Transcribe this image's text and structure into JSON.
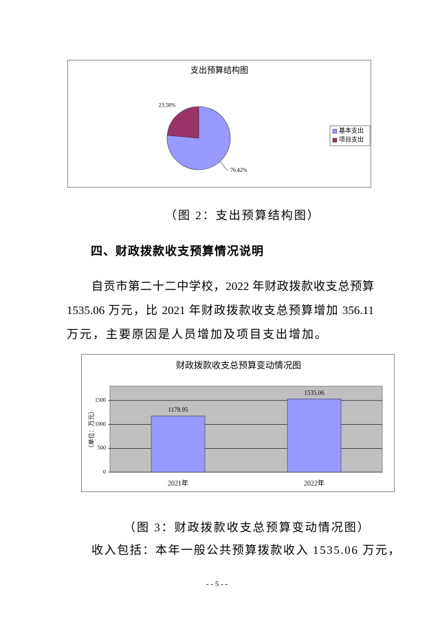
{
  "chart_data": [
    {
      "type": "pie",
      "title": "支出预算结构图",
      "categories": [
        "基本支出",
        "项目支出"
      ],
      "values": [
        76.42,
        23.58
      ],
      "value_labels": [
        "76.42%",
        "23.58%"
      ],
      "colors": [
        "#9999ff",
        "#993366"
      ],
      "legend": "right"
    },
    {
      "type": "bar",
      "title": "财政拨款收支总预算变动情况图",
      "y_label": "（单位：万元）",
      "categories": [
        "2021年",
        "2022年"
      ],
      "values": [
        1178.95,
        1535.06
      ],
      "color": "#9999ff",
      "ylim": [
        0,
        1800
      ],
      "yticks": [
        0,
        500,
        1000,
        1500
      ],
      "grid": true
    }
  ],
  "captions": [
    "（图 2：支出预算结构图）",
    "（图 3：财政拨款收支总预算变动情况图）"
  ],
  "heading": "四、财政拨款收支预算情况说明",
  "paragraph": [
    "自贡市第二十二中学校，2022 年财政拨款收支总预算",
    "1535.06 万元，比 2021 年财政拨款收支总预算增加 356.11",
    "万元，主要原因是人员增加及项目支出增加。"
  ],
  "closing": "收入包括：本年一般公共预算拨款收入 1535.06 万元，",
  "page_number": "- - 5 - -"
}
